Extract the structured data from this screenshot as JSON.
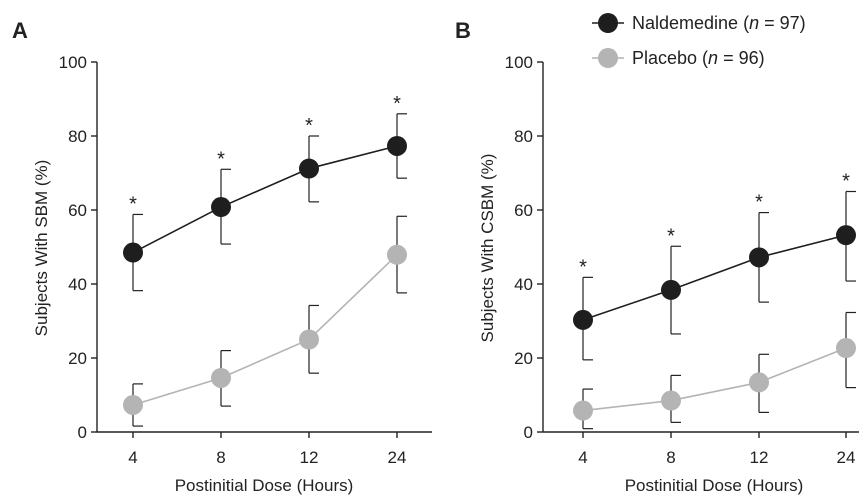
{
  "legend": {
    "position": "top-right",
    "entries": [
      {
        "prefix": "Naldemedine (",
        "n_label": "n",
        "suffix": " = 97)",
        "color": "#1e1e1e",
        "marker": "filled-circle"
      },
      {
        "prefix": "Placebo (",
        "n_label": "n",
        "suffix": " = 96)",
        "color": "#b4b4b4",
        "marker": "filled-circle"
      }
    ]
  },
  "chart_data": [
    {
      "type": "line",
      "panel_label": "A",
      "title": "",
      "xlabel": "Postinitial Dose (Hours)",
      "ylabel": "Subjects With SBM (%)",
      "categories": [
        "4",
        "8",
        "12",
        "24"
      ],
      "ylim": [
        0,
        100
      ],
      "yticks": [
        0,
        20,
        40,
        60,
        80,
        100
      ],
      "grid": false,
      "series": [
        {
          "name": "Naldemedine (n = 97)",
          "color": "#1e1e1e",
          "values": [
            48.5,
            60.8,
            71.2,
            77.3
          ],
          "err_upper": [
            58.8,
            71.0,
            80.0,
            86.0
          ],
          "err_lower": [
            38.2,
            50.8,
            62.2,
            68.6
          ]
        },
        {
          "name": "Placebo (n = 96)",
          "color": "#b4b4b4",
          "values": [
            7.3,
            14.6,
            25.0,
            47.9
          ],
          "err_upper": [
            13.0,
            22.0,
            34.2,
            58.3
          ],
          "err_lower": [
            1.6,
            7.0,
            15.9,
            37.6
          ]
        }
      ],
      "significance": [
        "*",
        "*",
        "*",
        "*"
      ]
    },
    {
      "type": "line",
      "panel_label": "B",
      "title": "",
      "xlabel": "Postinitial Dose (Hours)",
      "ylabel": "Subjects With CSBM (%)",
      "categories": [
        "4",
        "8",
        "12",
        "24"
      ],
      "ylim": [
        0,
        100
      ],
      "yticks": [
        0,
        20,
        40,
        60,
        80,
        100
      ],
      "grid": false,
      "series": [
        {
          "name": "Naldemedine (n = 97)",
          "color": "#1e1e1e",
          "values": [
            30.3,
            38.4,
            47.2,
            53.2
          ],
          "err_upper": [
            41.8,
            50.2,
            59.3,
            65.0
          ],
          "err_lower": [
            19.5,
            26.5,
            35.1,
            40.8
          ]
        },
        {
          "name": "Placebo (n = 96)",
          "color": "#b4b4b4",
          "values": [
            5.8,
            8.5,
            13.4,
            22.7
          ],
          "err_upper": [
            11.6,
            15.3,
            21.0,
            32.3
          ],
          "err_lower": [
            0.9,
            2.6,
            5.3,
            12.0
          ]
        }
      ],
      "significance": [
        "*",
        "*",
        "*",
        "*"
      ]
    }
  ]
}
